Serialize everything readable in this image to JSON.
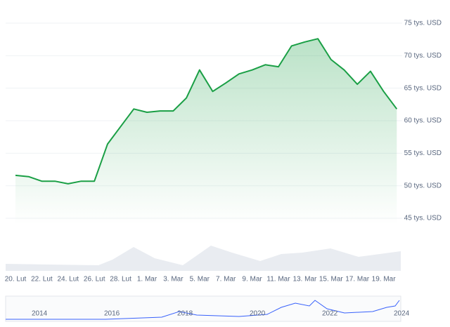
{
  "chart_data": {
    "type": "line",
    "categories": [
      "20. Lut",
      null,
      "22. Lut",
      null,
      "24. Lut",
      null,
      "26. Lut",
      null,
      "28. Lut",
      null,
      "1. Mar",
      null,
      "3. Mar",
      null,
      "5. Mar",
      null,
      "7. Mar",
      null,
      "9. Mar",
      null,
      "11. Mar",
      null,
      "13. Mar",
      null,
      "15. Mar",
      null,
      "17. Mar",
      null,
      "19. Mar",
      null
    ],
    "series": [
      {
        "color": "#1a9f45",
        "values": [
          51.6,
          51.4,
          50.7,
          50.7,
          50.3,
          50.7,
          50.7,
          56.4,
          59.1,
          61.8,
          61.3,
          61.5,
          61.5,
          63.5,
          67.8,
          64.5,
          65.8,
          67.2,
          67.8,
          68.6,
          68.3,
          71.5,
          72.1,
          72.6,
          69.4,
          67.8,
          65.6,
          67.6,
          64.5,
          61.8
        ]
      }
    ],
    "ylim": [
      44,
      76
    ],
    "yticks": [
      {
        "value": 45,
        "label": "45 tys. USD"
      },
      {
        "value": 50,
        "label": "50 tys. USD"
      },
      {
        "value": 55,
        "label": "55 tys. USD"
      },
      {
        "value": 60,
        "label": "60 tys. USD"
      },
      {
        "value": 65,
        "label": "65 tys. USD"
      },
      {
        "value": 70,
        "label": "70 tys. USD"
      },
      {
        "value": 75,
        "label": "75 tys. USD"
      }
    ],
    "grid": true,
    "navigator_labels": [
      "2014",
      "2016",
      "2018",
      "2020",
      "2022",
      "2024"
    ]
  }
}
